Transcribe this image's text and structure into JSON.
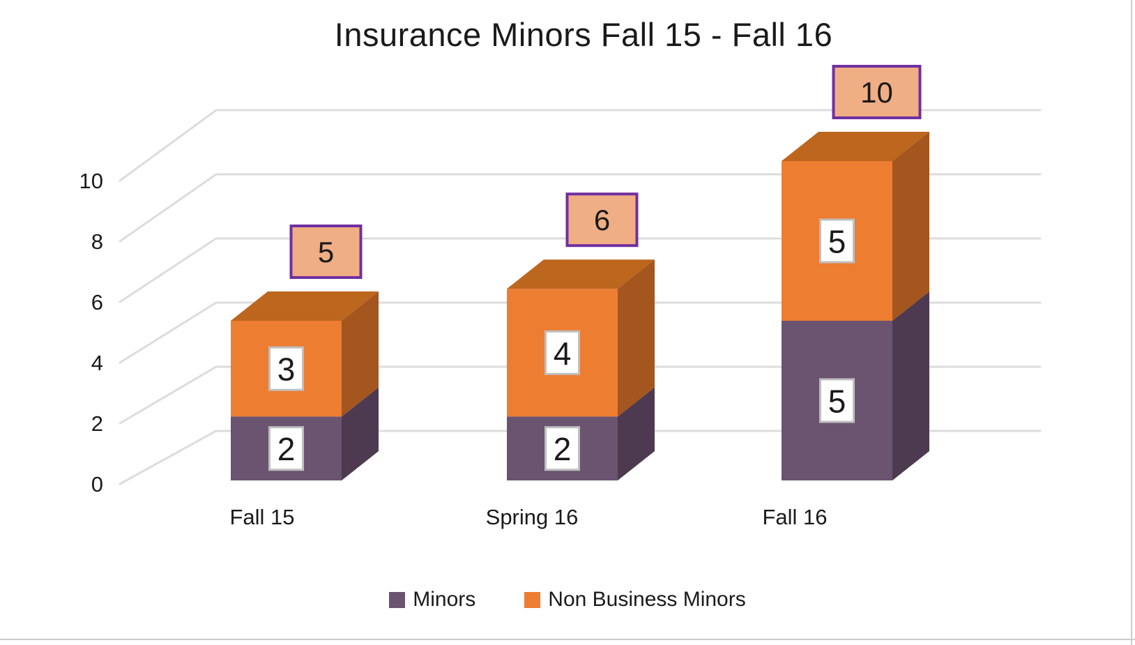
{
  "title": "Insurance Minors Fall 15 - Fall 16",
  "chart_data": {
    "type": "bar",
    "subtype": "3d_stacked_column",
    "title": "Insurance Minors Fall 15 - Fall 16",
    "categories": [
      "Fall 15",
      "Spring 16",
      "Fall 16"
    ],
    "series": [
      {
        "name": "Minors",
        "values": [
          2,
          2,
          5
        ],
        "color": "#6A5470",
        "side_color": "#4D3A50"
      },
      {
        "name": "Non Business Minors",
        "values": [
          3,
          4,
          5
        ],
        "color": "#ED7D31",
        "side_color": "#A4561E",
        "top_color": "#BC661E"
      }
    ],
    "totals": [
      5,
      6,
      10
    ],
    "y_axis": {
      "min": 0,
      "max": 10,
      "step": 2,
      "ticks": [
        0,
        2,
        4,
        6,
        8,
        10
      ]
    },
    "grid": true,
    "legend_position": "bottom",
    "styles": {
      "gridline_color": "#DCDCDC",
      "text_color": "#1A1A1A",
      "background": "#FFFFFF",
      "frame_border_color": "#CCCCCC",
      "total_box_fill": "#F0AE84",
      "total_box_border": "#7030A0",
      "value_box_fill": "#FFFFFF",
      "value_box_border": "#BFBFBF"
    }
  }
}
